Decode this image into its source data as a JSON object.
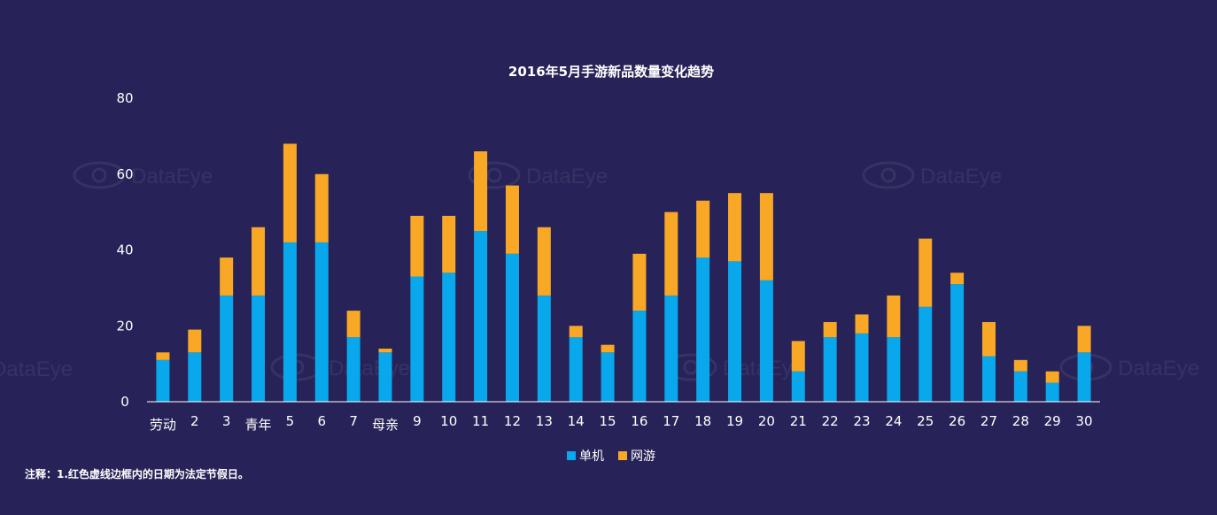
{
  "note": "注释：1.红色虚线边框内的日期为法定节假日。",
  "watermark_text": "DataEye",
  "chart_data": {
    "type": "bar",
    "stacked": true,
    "title": "2016年5月手游新品数量变化趋势",
    "categories": [
      "劳动",
      "2",
      "3",
      "青年",
      "5",
      "6",
      "7",
      "母亲",
      "9",
      "10",
      "11",
      "12",
      "13",
      "14",
      "15",
      "16",
      "17",
      "18",
      "19",
      "20",
      "21",
      "22",
      "23",
      "24",
      "25",
      "26",
      "27",
      "28",
      "29",
      "30"
    ],
    "series": [
      {
        "name": "单机",
        "color": "#09A8EC",
        "values": [
          11,
          13,
          28,
          28,
          42,
          42,
          17,
          13,
          33,
          34,
          45,
          39,
          28,
          17,
          13,
          24,
          28,
          38,
          37,
          32,
          8,
          17,
          18,
          17,
          25,
          31,
          12,
          8,
          5,
          13
        ]
      },
      {
        "name": "网游",
        "color": "#F9A825",
        "values": [
          2,
          6,
          10,
          18,
          26,
          18,
          7,
          1,
          16,
          15,
          21,
          18,
          18,
          3,
          2,
          15,
          22,
          15,
          18,
          23,
          8,
          4,
          5,
          11,
          18,
          3,
          9,
          3,
          3,
          7
        ]
      }
    ],
    "ylim": [
      0,
      80
    ],
    "yticks": [
      0,
      20,
      40,
      60,
      80
    ],
    "xlabel": "",
    "ylabel": "",
    "legend_position": "bottom"
  }
}
